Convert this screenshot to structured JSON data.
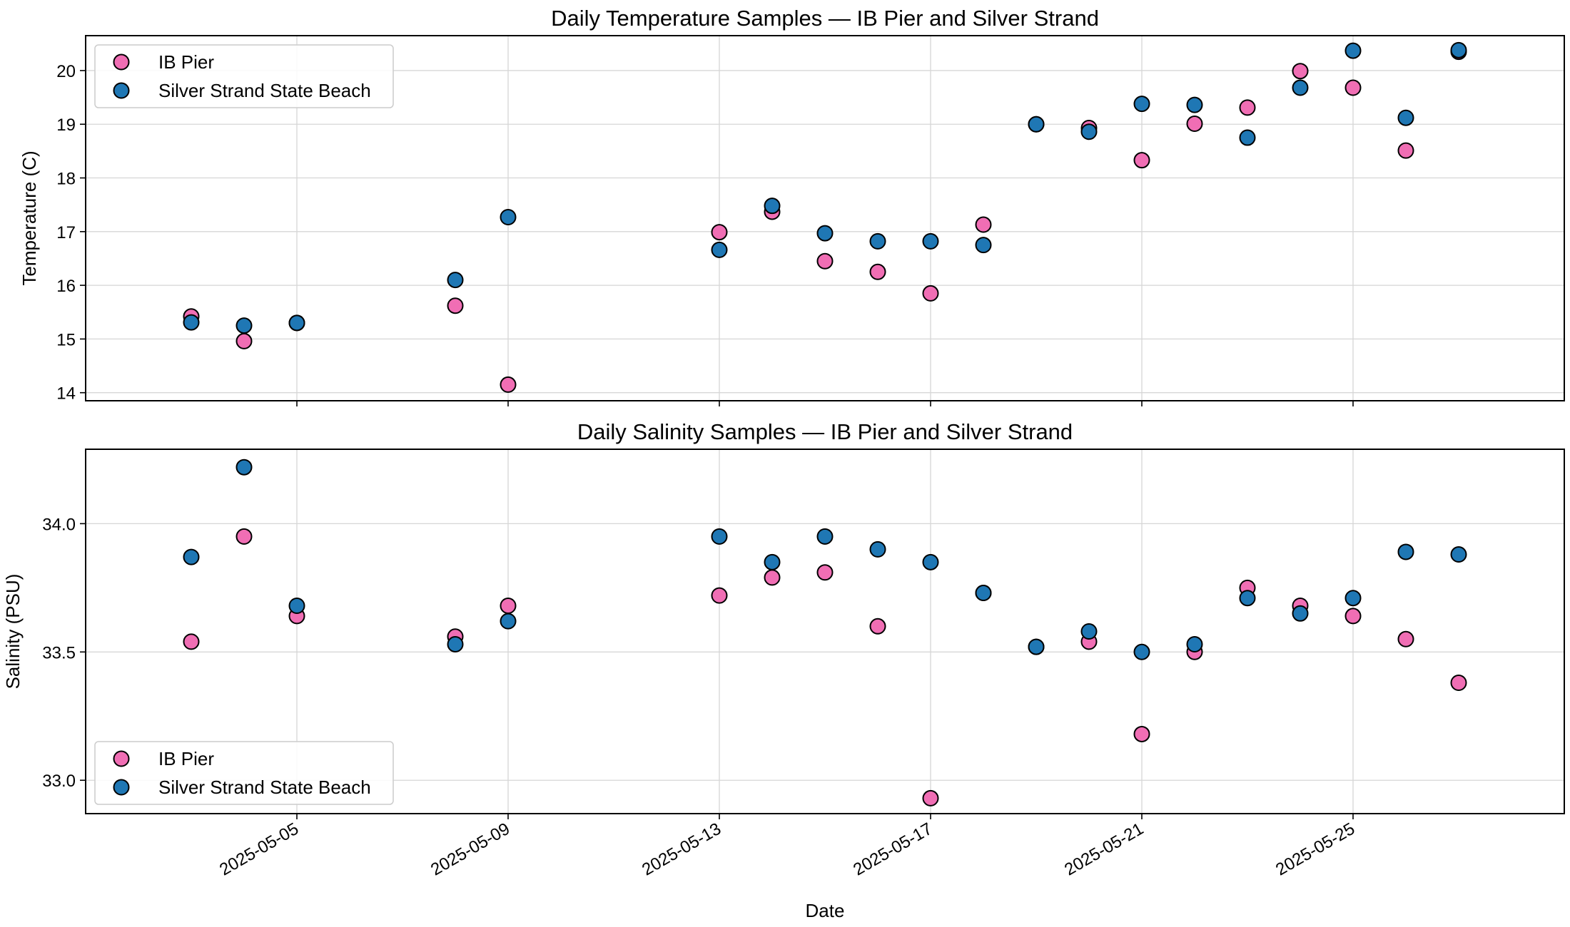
{
  "chart_data": [
    {
      "type": "scatter",
      "title": "Daily Temperature Samples — IB Pier and Silver Strand",
      "xlabel": "",
      "ylabel": "Temperature (C)",
      "x_type": "date",
      "xlim": [
        "2025-05-01",
        "2025-05-29"
      ],
      "ylim": [
        13.85,
        20.65
      ],
      "yticks": [
        14,
        15,
        16,
        17,
        18,
        19,
        20
      ],
      "xticks": [
        "2025-05-05",
        "2025-05-09",
        "2025-05-13",
        "2025-05-17",
        "2025-05-21",
        "2025-05-25"
      ],
      "show_xtick_labels": false,
      "grid": true,
      "legend": "upper-left",
      "series": [
        {
          "name": "IB Pier",
          "color": "#f06eb4",
          "x": [
            "2025-05-03",
            "2025-05-04",
            "2025-05-05",
            "2025-05-08",
            "2025-05-09",
            "2025-05-13",
            "2025-05-14",
            "2025-05-15",
            "2025-05-16",
            "2025-05-17",
            "2025-05-18",
            "2025-05-19",
            "2025-05-20",
            "2025-05-21",
            "2025-05-22",
            "2025-05-23",
            "2025-05-24",
            "2025-05-25",
            "2025-05-26",
            "2025-05-27"
          ],
          "y": [
            15.42,
            14.96,
            15.3,
            15.62,
            14.15,
            16.99,
            17.37,
            16.45,
            16.25,
            15.85,
            17.13,
            19.0,
            18.93,
            18.33,
            19.01,
            19.31,
            19.99,
            19.68,
            18.51,
            20.35
          ]
        },
        {
          "name": "Silver Strand State Beach",
          "color": "#1f77b4",
          "x": [
            "2025-05-03",
            "2025-05-04",
            "2025-05-05",
            "2025-05-08",
            "2025-05-09",
            "2025-05-13",
            "2025-05-14",
            "2025-05-15",
            "2025-05-16",
            "2025-05-17",
            "2025-05-18",
            "2025-05-19",
            "2025-05-20",
            "2025-05-21",
            "2025-05-22",
            "2025-05-23",
            "2025-05-24",
            "2025-05-25",
            "2025-05-26",
            "2025-05-27"
          ],
          "y": [
            15.31,
            15.25,
            15.3,
            16.1,
            17.27,
            16.66,
            17.48,
            16.97,
            16.82,
            16.82,
            16.75,
            19.0,
            18.86,
            19.38,
            19.36,
            18.75,
            19.68,
            20.37,
            19.12,
            20.38
          ]
        }
      ]
    },
    {
      "type": "scatter",
      "title": "Daily Salinity Samples — IB Pier and Silver Strand",
      "xlabel": "Date",
      "ylabel": "Salinity (PSU)",
      "x_type": "date",
      "xlim": [
        "2025-05-01",
        "2025-05-29"
      ],
      "ylim": [
        32.87,
        34.29
      ],
      "yticks": [
        "33.0",
        "33.5",
        "34.0"
      ],
      "xticks": [
        "2025-05-05",
        "2025-05-09",
        "2025-05-13",
        "2025-05-17",
        "2025-05-21",
        "2025-05-25"
      ],
      "show_xtick_labels": true,
      "grid": true,
      "legend": "lower-left",
      "series": [
        {
          "name": "IB Pier",
          "color": "#f06eb4",
          "x": [
            "2025-05-03",
            "2025-05-04",
            "2025-05-05",
            "2025-05-08",
            "2025-05-09",
            "2025-05-13",
            "2025-05-14",
            "2025-05-15",
            "2025-05-16",
            "2025-05-17",
            "2025-05-18",
            "2025-05-19",
            "2025-05-20",
            "2025-05-21",
            "2025-05-22",
            "2025-05-23",
            "2025-05-24",
            "2025-05-25",
            "2025-05-26",
            "2025-05-27"
          ],
          "y": [
            33.54,
            33.95,
            33.64,
            33.56,
            33.68,
            33.72,
            33.79,
            33.81,
            33.6,
            32.93,
            33.73,
            33.52,
            33.54,
            33.18,
            33.5,
            33.75,
            33.68,
            33.64,
            33.55,
            33.38
          ]
        },
        {
          "name": "Silver Strand State Beach",
          "color": "#1f77b4",
          "x": [
            "2025-05-03",
            "2025-05-04",
            "2025-05-05",
            "2025-05-08",
            "2025-05-09",
            "2025-05-13",
            "2025-05-14",
            "2025-05-15",
            "2025-05-16",
            "2025-05-17",
            "2025-05-18",
            "2025-05-19",
            "2025-05-20",
            "2025-05-21",
            "2025-05-22",
            "2025-05-23",
            "2025-05-24",
            "2025-05-25",
            "2025-05-26",
            "2025-05-27"
          ],
          "y": [
            33.87,
            34.22,
            33.68,
            33.53,
            33.62,
            33.95,
            33.85,
            33.95,
            33.9,
            33.85,
            33.73,
            33.52,
            33.58,
            33.5,
            33.53,
            33.71,
            33.65,
            33.71,
            33.89,
            33.88
          ]
        }
      ]
    }
  ]
}
